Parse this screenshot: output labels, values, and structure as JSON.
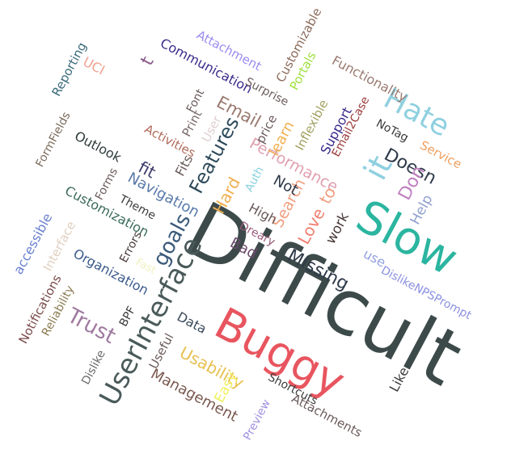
{
  "word_cloud": {
    "words": [
      {
        "text": "Difficult",
        "color": "#3d4a4a"
      },
      {
        "text": "Buggy",
        "color": "#e8555f"
      },
      {
        "text": "Slow",
        "color": "#2bb5a0"
      },
      {
        "text": "UserInterface",
        "color": "#4a5a5a"
      },
      {
        "text": "Hate",
        "color": "#8fd0e0"
      },
      {
        "text": "it",
        "color": "#8fd0e0"
      },
      {
        "text": "Missing",
        "color": "#2e3a4a"
      },
      {
        "text": "Features",
        "color": "#2e4a5a"
      },
      {
        "text": "Trust",
        "color": "#a07aa0"
      },
      {
        "text": "Usability",
        "color": "#e8c050"
      },
      {
        "text": "goals",
        "color": "#3a5a7a"
      },
      {
        "text": "Performance",
        "color": "#e0a0b0"
      },
      {
        "text": "Email",
        "color": "#9a7a70"
      },
      {
        "text": "Doesn",
        "color": "#2e3a4a"
      },
      {
        "text": "Don",
        "color": "#c080c0"
      },
      {
        "text": "Love",
        "color": "#f08070"
      },
      {
        "text": "Search",
        "color": "#f0a080"
      },
      {
        "text": "to",
        "color": "#f0a080"
      },
      {
        "text": "Hard",
        "color": "#f0b050"
      },
      {
        "text": "Management",
        "color": "#7a5a50"
      },
      {
        "text": "Navigation",
        "color": "#5a7aaa"
      },
      {
        "text": "Customization",
        "color": "#3a6a5a"
      },
      {
        "text": "Organization",
        "color": "#3a5a8a"
      },
      {
        "text": "Data",
        "color": "#3a4a5a"
      },
      {
        "text": "Communication",
        "color": "#3a2a8a"
      },
      {
        "text": "Functionality",
        "color": "#9a7a70"
      },
      {
        "text": "Attachment",
        "color": "#9a8af0"
      },
      {
        "text": "Customizable",
        "color": "#8a6a5a"
      },
      {
        "text": "Portals",
        "color": "#a0e040"
      },
      {
        "text": "Surprise",
        "color": "#6a5a5a"
      },
      {
        "text": "learn",
        "color": "#f0b050"
      },
      {
        "text": "Inflexible",
        "color": "#a0a060"
      },
      {
        "text": "Support",
        "color": "#3a2a8a"
      },
      {
        "text": "Email2Case",
        "color": "#9a3a3a"
      },
      {
        "text": "NoTag",
        "color": "#3a3a3a"
      },
      {
        "text": "Service",
        "color": "#f0a060"
      },
      {
        "text": "Help",
        "color": "#90a0d0"
      },
      {
        "text": "work",
        "color": "#4a3a3a"
      },
      {
        "text": "use",
        "color": "#90a0e0"
      },
      {
        "text": "DislikeNPSPrompt",
        "color": "#8a90e0"
      },
      {
        "text": "Like",
        "color": "#3a3a3a"
      },
      {
        "text": "Shortcuts",
        "color": "#3a3a3a"
      },
      {
        "text": "Attachments",
        "color": "#6a5a5a"
      },
      {
        "text": "Preview",
        "color": "#a090e0"
      },
      {
        "text": "Easy",
        "color": "#f0f060"
      },
      {
        "text": "Useful",
        "color": "#6a5a5a"
      },
      {
        "text": "Dislike",
        "color": "#6a6a6a"
      },
      {
        "text": "BPF",
        "color": "#3a3a3a"
      },
      {
        "text": "Reliability",
        "color": "#8a7a50"
      },
      {
        "text": "Notifications",
        "color": "#7a4a4a"
      },
      {
        "text": "accessible",
        "color": "#6a80d0"
      },
      {
        "text": "Interface",
        "color": "#e0d0c0"
      },
      {
        "text": "Errors",
        "color": "#4a3a3a"
      },
      {
        "text": "Fast",
        "color": "#f0f0c0"
      },
      {
        "text": "Theme",
        "color": "#3a3a3a"
      },
      {
        "text": "Forms",
        "color": "#6a5a5a"
      },
      {
        "text": "fit",
        "color": "#3a3a6a"
      },
      {
        "text": "Activities",
        "color": "#b06a5a"
      },
      {
        "text": "Outlook",
        "color": "#2e3a3a"
      },
      {
        "text": "FormFields",
        "color": "#7a6a5a"
      },
      {
        "text": "Reporting",
        "color": "#3a6a7a"
      },
      {
        "text": "UCI",
        "color": "#f0a090"
      },
      {
        "text": "t",
        "color": "#8a5a8a"
      },
      {
        "text": "Font",
        "color": "#6a5a5a"
      },
      {
        "text": "Print",
        "color": "#7a6a6a"
      },
      {
        "text": "User",
        "color": "#e0d0d0"
      },
      {
        "text": "Fits",
        "color": "#6a5a5a"
      },
      {
        "text": "price",
        "color": "#6a5a5a"
      },
      {
        "text": "Auth",
        "color": "#8ad0e0"
      },
      {
        "text": "Not",
        "color": "#2e3a4a"
      },
      {
        "text": "High",
        "color": "#6a5a5a"
      },
      {
        "text": "Dreary",
        "color": "#9a5a7a"
      },
      {
        "text": "Bad",
        "color": "#6a4a6a"
      }
    ]
  }
}
